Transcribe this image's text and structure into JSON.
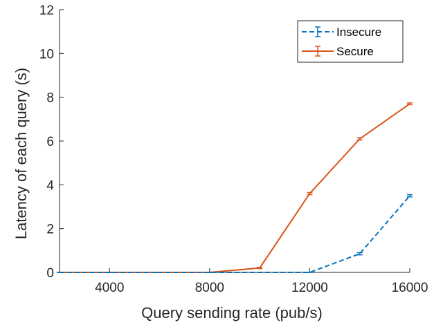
{
  "chart_data": {
    "type": "line",
    "title": "",
    "xlabel": "Query sending rate (pub/s)",
    "ylabel": "Latency of each query (s)",
    "xlim": [
      2000,
      16000
    ],
    "ylim": [
      0,
      12
    ],
    "xticks": [
      4000,
      8000,
      12000,
      16000
    ],
    "yticks": [
      0,
      2,
      4,
      6,
      8,
      10,
      12
    ],
    "grid": false,
    "legend_position": "top-right",
    "x": [
      2000,
      4000,
      6000,
      8000,
      10000,
      12000,
      14000,
      16000
    ],
    "series": [
      {
        "name": "Insecure",
        "style": "dashed",
        "color": "#0072BD",
        "values": [
          0,
          0,
          0,
          0,
          0,
          0,
          0.85,
          3.5
        ],
        "errors": [
          0,
          0,
          0,
          0,
          0,
          0,
          0.05,
          0.05
        ]
      },
      {
        "name": "Secure",
        "style": "solid",
        "color": "#D95319",
        "values": [
          0,
          0,
          0,
          0,
          0.2,
          3.6,
          6.1,
          7.7
        ],
        "errors": [
          0,
          0,
          0,
          0,
          0.03,
          0.05,
          0.05,
          0.04
        ]
      }
    ]
  }
}
